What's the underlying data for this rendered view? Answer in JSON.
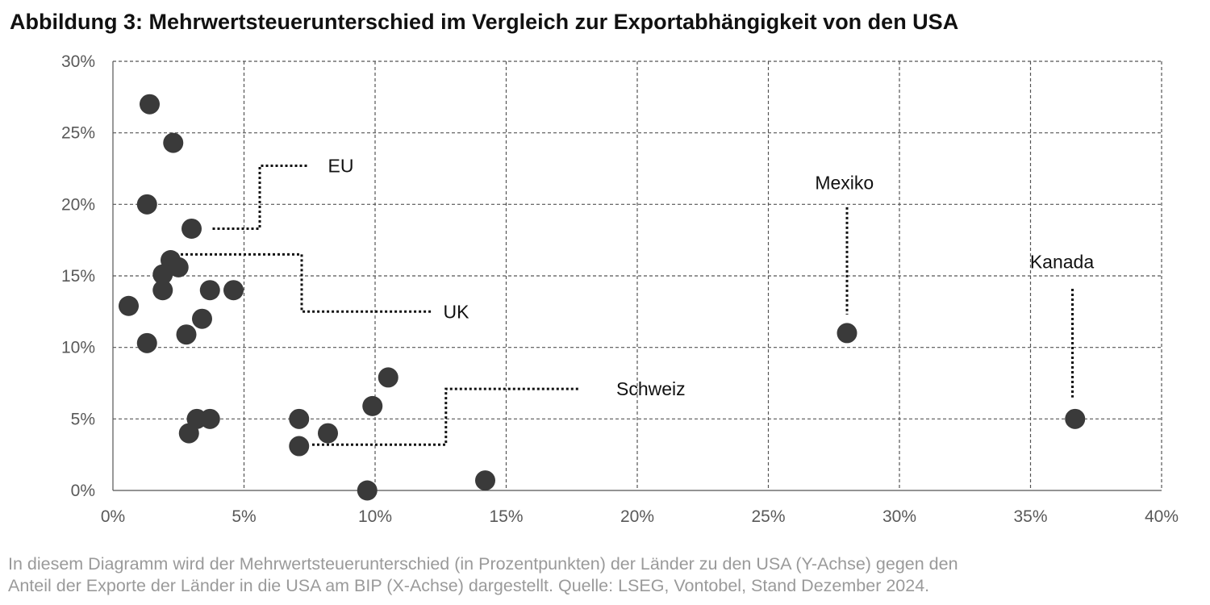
{
  "title": "Abbildung 3: Mehrwertsteuerunterschied im Vergleich zur Exportabhängigkeit von den USA",
  "caption_line1": "In diesem Diagramm wird der Mehrwertsteuerunterschied (in Prozentpunkten) der Länder zu den USA (Y-Achse) gegen den",
  "caption_line2": "Anteil der Exporte der Länder in die USA am BIP (X-Achse) dargestellt. Quelle: LSEG, Vontobel, Stand Dezember 2024.",
  "colors": {
    "marker": "#3a3a3a",
    "grid": "#555555",
    "axis_text": "#595959",
    "caption": "#9a9a9a"
  },
  "chart_data": {
    "type": "scatter",
    "xlabel": "",
    "ylabel": "",
    "xlim": [
      0,
      40
    ],
    "ylim": [
      0,
      30
    ],
    "xticks": [
      0,
      5,
      10,
      15,
      20,
      25,
      30,
      35,
      40
    ],
    "yticks": [
      0,
      5,
      10,
      15,
      20,
      25,
      30
    ],
    "xtick_labels": [
      "0%",
      "5%",
      "10%",
      "15%",
      "20%",
      "25%",
      "30%",
      "35%",
      "40%"
    ],
    "ytick_labels": [
      "0%",
      "5%",
      "10%",
      "15%",
      "20%",
      "25%",
      "30%"
    ],
    "grid": true,
    "points": [
      {
        "x": 1.4,
        "y": 27.0
      },
      {
        "x": 2.3,
        "y": 24.3
      },
      {
        "x": 1.3,
        "y": 20.0
      },
      {
        "x": 3.0,
        "y": 18.3
      },
      {
        "x": 2.2,
        "y": 16.1
      },
      {
        "x": 2.5,
        "y": 15.6
      },
      {
        "x": 1.9,
        "y": 15.1
      },
      {
        "x": 1.9,
        "y": 14.0
      },
      {
        "x": 3.7,
        "y": 14.0
      },
      {
        "x": 4.6,
        "y": 14.0
      },
      {
        "x": 0.6,
        "y": 12.9
      },
      {
        "x": 3.4,
        "y": 12.0
      },
      {
        "x": 2.8,
        "y": 10.9
      },
      {
        "x": 1.3,
        "y": 10.3
      },
      {
        "x": 10.5,
        "y": 7.9
      },
      {
        "x": 9.9,
        "y": 5.9
      },
      {
        "x": 3.2,
        "y": 5.0
      },
      {
        "x": 3.7,
        "y": 5.0
      },
      {
        "x": 7.1,
        "y": 5.0
      },
      {
        "x": 2.9,
        "y": 4.0
      },
      {
        "x": 8.2,
        "y": 4.0
      },
      {
        "x": 7.1,
        "y": 3.1
      },
      {
        "x": 14.2,
        "y": 0.7
      },
      {
        "x": 9.7,
        "y": 0.0
      },
      {
        "x": 28.0,
        "y": 11.0
      },
      {
        "x": 36.7,
        "y": 5.0
      }
    ],
    "annotations": [
      {
        "label": "EU",
        "text_x": 8.2,
        "text_y": 22.7,
        "leader": [
          [
            3.8,
            18.3
          ],
          [
            5.6,
            18.3
          ],
          [
            5.6,
            22.7
          ],
          [
            7.4,
            22.7
          ]
        ]
      },
      {
        "label": "UK",
        "text_x": 12.6,
        "text_y": 12.5,
        "leader": [
          [
            2.4,
            16.5
          ],
          [
            7.2,
            16.5
          ],
          [
            7.2,
            12.5
          ],
          [
            12.2,
            12.5
          ]
        ]
      },
      {
        "label": "Schweiz",
        "text_x": 19.2,
        "text_y": 7.1,
        "leader": [
          [
            7.6,
            3.2
          ],
          [
            12.7,
            3.2
          ],
          [
            12.7,
            7.1
          ],
          [
            17.8,
            7.1
          ]
        ]
      },
      {
        "label": "Mexiko",
        "text_x": 27.9,
        "text_y": 21.5,
        "leader": [
          [
            28.0,
            19.8
          ],
          [
            28.0,
            12.3
          ]
        ]
      },
      {
        "label": "Kanada",
        "text_x": 36.2,
        "text_y": 16.0,
        "leader": [
          [
            36.6,
            14.1
          ],
          [
            36.6,
            6.5
          ]
        ]
      }
    ]
  }
}
